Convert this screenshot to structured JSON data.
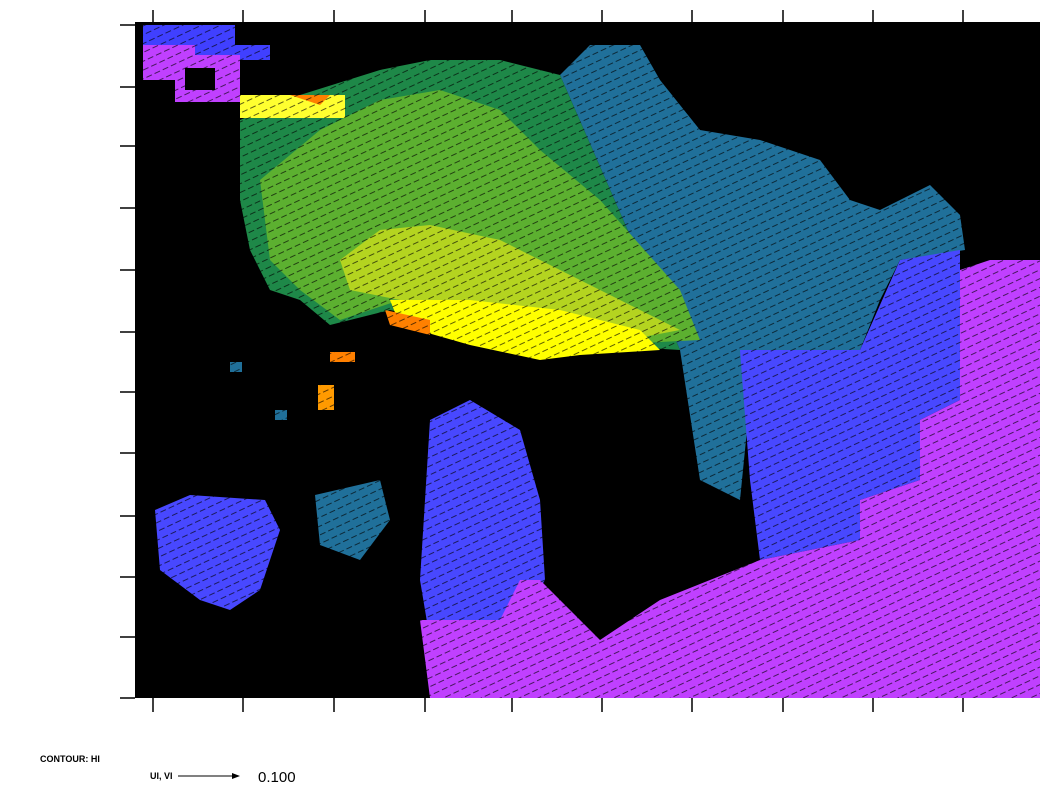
{
  "legend": {
    "contour_label": "CONTOUR: HI",
    "vector_label": "UI, VI",
    "reference_vector": "0.100"
  }
}
